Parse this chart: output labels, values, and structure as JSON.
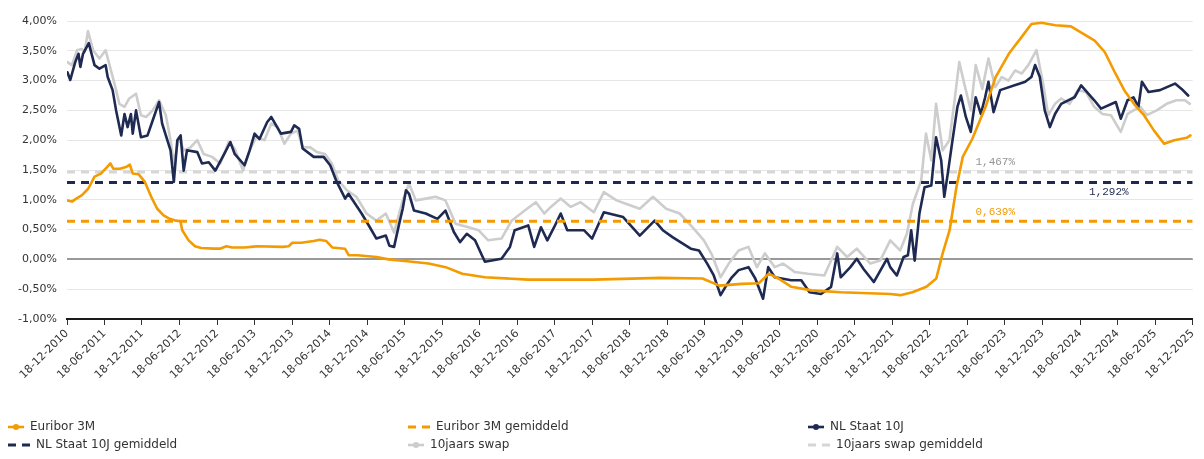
{
  "chart_data": {
    "type": "line",
    "xlim": [
      "2010-12-18",
      "2025-12-18"
    ],
    "xticks": [
      {
        "value": "2010-12-18",
        "label": "18-12-2010"
      },
      {
        "value": "2011-06-18",
        "label": "18-06-2011"
      },
      {
        "value": "2011-12-18",
        "label": "18-12-2011"
      },
      {
        "value": "2012-06-18",
        "label": "18-06-2012"
      },
      {
        "value": "2012-12-18",
        "label": "18-12-2012"
      },
      {
        "value": "2013-06-18",
        "label": "18-06-2013"
      },
      {
        "value": "2013-12-18",
        "label": "18-12-2013"
      },
      {
        "value": "2014-06-18",
        "label": "18-06-2014"
      },
      {
        "value": "2014-12-18",
        "label": "18-12-2014"
      },
      {
        "value": "2015-06-18",
        "label": "18-06-2015"
      },
      {
        "value": "2015-12-18",
        "label": "18-12-2015"
      },
      {
        "value": "2016-06-18",
        "label": "18-06-2016"
      },
      {
        "value": "2016-12-18",
        "label": "18-12-2016"
      },
      {
        "value": "2017-06-18",
        "label": "18-06-2017"
      },
      {
        "value": "2017-12-18",
        "label": "18-12-2017"
      },
      {
        "value": "2018-06-18",
        "label": "18-06-2018"
      },
      {
        "value": "2018-12-18",
        "label": "18-12-2018"
      },
      {
        "value": "2019-06-18",
        "label": "18-06-2019"
      },
      {
        "value": "2019-12-18",
        "label": "18-12-2019"
      },
      {
        "value": "2020-06-18",
        "label": "18-06-2020"
      },
      {
        "value": "2020-12-18",
        "label": "18-12-2020"
      },
      {
        "value": "2021-06-18",
        "label": "18-06-2021"
      },
      {
        "value": "2021-12-18",
        "label": "18-12-2021"
      },
      {
        "value": "2022-06-18",
        "label": "18-06-2022"
      },
      {
        "value": "2022-12-18",
        "label": "18-12-2022"
      },
      {
        "value": "2023-06-18",
        "label": "18-06-2023"
      },
      {
        "value": "2023-12-18",
        "label": "18-12-2023"
      },
      {
        "value": "2024-06-18",
        "label": "18-06-2024"
      },
      {
        "value": "2024-12-18",
        "label": "18-12-2024"
      },
      {
        "value": "2025-06-18",
        "label": "18-06-2025"
      },
      {
        "value": "2025-12-18",
        "label": "18-12-2025"
      }
    ],
    "ylim": [
      -1,
      4
    ],
    "yticks": [
      {
        "value": -1,
        "label": "-1,00%"
      },
      {
        "value": -0.5,
        "label": "-0,50%"
      },
      {
        "value": 0,
        "label": "0,00%"
      },
      {
        "value": 0.5,
        "label": "0,50%"
      },
      {
        "value": 1,
        "label": "1,00%"
      },
      {
        "value": 1.5,
        "label": "1,50%"
      },
      {
        "value": 2,
        "label": "2,00%"
      },
      {
        "value": 2.5,
        "label": "2,50%"
      },
      {
        "value": 3,
        "label": "3,00%"
      },
      {
        "value": 3.5,
        "label": "3,50%"
      },
      {
        "value": 4,
        "label": "4,00%"
      }
    ],
    "grid": "y",
    "legend": "bottom",
    "ref_lines": [
      {
        "axis": "y",
        "value": 0,
        "color": "#999999"
      }
    ],
    "series": [
      {
        "name": "Euribor 3M",
        "color": "#f39b00",
        "x": [
          "2010-12-20",
          "2011-01-11",
          "2011-02-01",
          "2011-03-01",
          "2011-04-01",
          "2011-05-01",
          "2011-06-01",
          "2011-07-01",
          "2011-07-17",
          "2011-08-01",
          "2011-09-01",
          "2011-10-01",
          "2011-10-20",
          "2011-11-03",
          "2011-12-01",
          "2012-01-01",
          "2012-02-01",
          "2012-03-01",
          "2012-04-01",
          "2012-05-01",
          "2012-06-01",
          "2012-06-22",
          "2012-07-01",
          "2012-08-01",
          "2012-09-01",
          "2012-10-01",
          "2012-12-01",
          "2013-01-01",
          "2013-02-01",
          "2013-03-01",
          "2013-05-01",
          "2013-07-01",
          "2013-11-01",
          "2013-12-01",
          "2013-12-19",
          "2014-02-01",
          "2014-04-01",
          "2014-05-01",
          "2014-06-01",
          "2014-07-01",
          "2014-09-01",
          "2014-09-19",
          "2014-11-01",
          "2015-02-01",
          "2015-04-01",
          "2015-07-01",
          "2015-10-13",
          "2016-01-04",
          "2016-03-25",
          "2016-07-13",
          "2017-02-07",
          "2017-12-25",
          "2018-11-13",
          "2019-06-07",
          "2019-08-28",
          "2019-12-16",
          "2020-03-07",
          "2020-04-25",
          "2020-06-10",
          "2020-08-13",
          "2020-11-19",
          "2021-04-10",
          "2021-12-07",
          "2022-01-25",
          "2022-03-25",
          "2022-06-01",
          "2022-07-19",
          "2022-08-19",
          "2022-09-22",
          "2022-10-25",
          "2022-11-25",
          "2023-01-10",
          "2023-03-16",
          "2023-05-04",
          "2023-07-07",
          "2023-09-07",
          "2023-10-25",
          "2023-12-13",
          "2024-02-19",
          "2024-05-04",
          "2024-06-22",
          "2024-08-28",
          "2024-10-16",
          "2024-12-04",
          "2025-01-19",
          "2025-03-07",
          "2025-04-25",
          "2025-06-13",
          "2025-08-01",
          "2025-09-19",
          "2025-11-19",
          "2025-12-07"
        ],
        "values": [
          0.99,
          0.97,
          1.02,
          1.08,
          1.19,
          1.39,
          1.44,
          1.55,
          1.61,
          1.52,
          1.52,
          1.55,
          1.59,
          1.44,
          1.43,
          1.3,
          1.05,
          0.85,
          0.74,
          0.68,
          0.65,
          0.64,
          0.49,
          0.32,
          0.22,
          0.19,
          0.18,
          0.18,
          0.22,
          0.2,
          0.2,
          0.22,
          0.21,
          0.22,
          0.28,
          0.28,
          0.31,
          0.33,
          0.31,
          0.2,
          0.18,
          0.07,
          0.07,
          0.04,
          0.0,
          -0.03,
          -0.07,
          -0.13,
          -0.24,
          -0.3,
          -0.34,
          -0.34,
          -0.31,
          -0.32,
          -0.44,
          -0.41,
          -0.4,
          -0.24,
          -0.32,
          -0.46,
          -0.52,
          -0.55,
          -0.58,
          -0.6,
          -0.55,
          -0.46,
          -0.32,
          0.1,
          0.49,
          1.21,
          1.72,
          2.02,
          2.56,
          3.06,
          3.45,
          3.73,
          3.95,
          3.97,
          3.93,
          3.91,
          3.81,
          3.67,
          3.48,
          3.14,
          2.84,
          2.61,
          2.42,
          2.16,
          1.94,
          2.0,
          2.04,
          2.08
        ]
      },
      {
        "name": "Euribor 3M gemiddeld",
        "color": "#f39b00",
        "line_style": "dashed",
        "x": [
          "2010-12-18",
          "2023-05-02",
          "2025-12-18"
        ],
        "values": [
          0.639,
          0.639,
          0.639
        ],
        "value_labels": [
          null,
          "0,639%",
          null
        ]
      },
      {
        "name": "NL Staat 10J",
        "color": "#1e2a52",
        "x": [
          "2010-12-20",
          "2011-01-03",
          "2011-01-27",
          "2011-02-12",
          "2011-02-21",
          "2011-03-06",
          "2011-04-03",
          "2011-05-01",
          "2011-05-25",
          "2011-06-24",
          "2011-07-04",
          "2011-07-28",
          "2011-08-14",
          "2011-09-08",
          "2011-09-24",
          "2011-10-09",
          "2011-10-25",
          "2011-11-03",
          "2011-11-19",
          "2011-12-13",
          "2012-01-14",
          "2012-02-08",
          "2012-03-10",
          "2012-03-25",
          "2012-05-05",
          "2012-05-21",
          "2012-06-07",
          "2012-06-23",
          "2012-07-08",
          "2012-07-24",
          "2012-09-12",
          "2012-10-05",
          "2012-11-07",
          "2012-12-09",
          "2013-01-26",
          "2013-02-20",
          "2013-03-13",
          "2013-04-30",
          "2013-05-25",
          "2013-06-18",
          "2013-07-12",
          "2013-08-18",
          "2013-09-07",
          "2013-10-24",
          "2013-12-12",
          "2013-12-28",
          "2014-01-21",
          "2014-02-07",
          "2014-04-02",
          "2014-05-20",
          "2014-06-21",
          "2014-07-23",
          "2014-09-02",
          "2014-09-18",
          "2014-11-21",
          "2014-12-31",
          "2015-02-01",
          "2015-03-19",
          "2015-04-05",
          "2015-04-28",
          "2015-05-23",
          "2015-06-09",
          "2015-06-25",
          "2015-07-10",
          "2015-08-03",
          "2015-09-29",
          "2015-11-25",
          "2016-01-03",
          "2016-02-13",
          "2016-03-14",
          "2016-04-16",
          "2016-05-26",
          "2016-07-13",
          "2016-10-02",
          "2016-11-12",
          "2016-12-05",
          "2017-02-09",
          "2017-03-10",
          "2017-04-12",
          "2017-05-13",
          "2017-06-15",
          "2017-07-17",
          "2017-08-18",
          "2017-11-07",
          "2017-12-17",
          "2018-02-12",
          "2018-05-17",
          "2018-08-06",
          "2018-10-17",
          "2018-11-26",
          "2019-01-14",
          "2019-04-11",
          "2019-05-21",
          "2019-06-30",
          "2019-08-01",
          "2019-09-03",
          "2019-09-27",
          "2019-10-28",
          "2019-11-30",
          "2020-01-17",
          "2020-02-19",
          "2020-03-28",
          "2020-04-22",
          "2020-05-24",
          "2020-08-12",
          "2020-09-30",
          "2020-11-09",
          "2021-01-04",
          "2021-02-22",
          "2021-03-24",
          "2021-04-10",
          "2021-05-27",
          "2021-06-27",
          "2021-07-30",
          "2021-09-18",
          "2021-11-21",
          "2021-12-07",
          "2022-01-08",
          "2022-02-10",
          "2022-03-03",
          "2022-03-19",
          "2022-04-05",
          "2022-04-28",
          "2022-05-23",
          "2022-06-25",
          "2022-07-18",
          "2022-08-12",
          "2022-08-27",
          "2022-09-13",
          "2022-10-06",
          "2022-10-30",
          "2022-11-16",
          "2022-12-10",
          "2023-01-03",
          "2023-01-27",
          "2023-02-21",
          "2023-03-14",
          "2023-03-30",
          "2023-04-24",
          "2023-05-26",
          "2023-09-25",
          "2023-10-25",
          "2023-11-12",
          "2023-12-05",
          "2023-12-29",
          "2024-01-23",
          "2024-02-17",
          "2024-03-18",
          "2024-05-22",
          "2024-06-23",
          "2024-08-26",
          "2024-09-28",
          "2024-12-09",
          "2025-01-02",
          "2025-02-04",
          "2025-03-05",
          "2025-03-29",
          "2025-04-15",
          "2025-05-17",
          "2025-07-12",
          "2025-09-23",
          "2025-10-25",
          "2025-11-26"
        ],
        "values": [
          3.14,
          3.01,
          3.31,
          3.45,
          3.23,
          3.45,
          3.63,
          3.26,
          3.2,
          3.26,
          3.06,
          2.84,
          2.5,
          2.08,
          2.44,
          2.22,
          2.44,
          2.11,
          2.5,
          2.05,
          2.08,
          2.33,
          2.64,
          2.28,
          1.83,
          1.3,
          2.0,
          2.08,
          1.49,
          1.83,
          1.8,
          1.61,
          1.63,
          1.49,
          1.8,
          1.97,
          1.77,
          1.58,
          1.83,
          2.11,
          2.02,
          2.3,
          2.39,
          2.11,
          2.14,
          2.25,
          2.19,
          1.86,
          1.72,
          1.72,
          1.58,
          1.3,
          1.02,
          1.1,
          0.77,
          0.54,
          0.35,
          0.4,
          0.23,
          0.21,
          0.6,
          0.85,
          1.16,
          1.1,
          0.82,
          0.77,
          0.68,
          0.82,
          0.46,
          0.29,
          0.43,
          0.32,
          -0.04,
          0.01,
          0.21,
          0.49,
          0.57,
          0.21,
          0.54,
          0.32,
          0.54,
          0.77,
          0.49,
          0.49,
          0.35,
          0.79,
          0.71,
          0.4,
          0.65,
          0.49,
          0.37,
          0.18,
          0.15,
          -0.07,
          -0.27,
          -0.6,
          -0.46,
          -0.3,
          -0.18,
          -0.13,
          -0.32,
          -0.66,
          -0.13,
          -0.3,
          -0.35,
          -0.35,
          -0.55,
          -0.58,
          -0.46,
          0.1,
          -0.3,
          -0.13,
          0.01,
          -0.16,
          -0.38,
          0.01,
          -0.13,
          -0.27,
          0.04,
          0.07,
          0.49,
          -0.02,
          0.77,
          1.21,
          1.24,
          2.05,
          1.66,
          1.05,
          1.44,
          2.0,
          2.56,
          2.75,
          2.39,
          2.14,
          2.72,
          2.44,
          2.72,
          2.98,
          2.47,
          2.84,
          2.98,
          3.06,
          3.26,
          3.06,
          2.5,
          2.22,
          2.44,
          2.61,
          2.72,
          2.92,
          2.67,
          2.53,
          2.64,
          2.36,
          2.67,
          2.72,
          2.56,
          2.98,
          2.81,
          2.84,
          2.95,
          2.86,
          2.75
        ]
      },
      {
        "name": "NL Staat 10J gemiddeld",
        "color": "#1e2a52",
        "line_style": "dashed",
        "x": [
          "2010-12-18",
          "2024-11-05",
          "2025-12-18"
        ],
        "values": [
          1.292,
          1.292,
          1.292
        ],
        "value_labels": [
          null,
          "1,292%",
          null
        ]
      },
      {
        "name": "10jaars swap",
        "color": "#cdcdcd",
        "x": [
          "2010-12-20",
          "2011-01-11",
          "2011-02-05",
          "2011-02-28",
          "2011-03-14",
          "2011-03-30",
          "2011-04-24",
          "2011-05-25",
          "2011-06-24",
          "2011-07-13",
          "2011-08-06",
          "2011-08-30",
          "2011-09-24",
          "2011-10-17",
          "2011-11-19",
          "2011-12-13",
          "2012-01-07",
          "2012-02-08",
          "2012-03-10",
          "2012-04-12",
          "2012-05-05",
          "2012-05-21",
          "2012-06-15",
          "2012-07-08",
          "2012-08-10",
          "2012-09-12",
          "2012-10-13",
          "2012-11-23",
          "2013-01-02",
          "2013-02-12",
          "2013-03-13",
          "2013-04-23",
          "2013-05-25",
          "2013-06-26",
          "2013-08-05",
          "2013-09-07",
          "2013-10-08",
          "2013-11-10",
          "2013-12-12",
          "2014-01-13",
          "2014-02-07",
          "2014-03-16",
          "2014-04-18",
          "2014-05-27",
          "2014-06-29",
          "2014-07-30",
          "2014-09-10",
          "2014-10-27",
          "2014-12-15",
          "2015-02-01",
          "2015-03-19",
          "2015-04-28",
          "2015-06-09",
          "2015-07-10",
          "2015-08-12",
          "2015-09-29",
          "2015-11-16",
          "2016-01-03",
          "2016-02-21",
          "2016-04-24",
          "2016-06-12",
          "2016-07-29",
          "2016-10-02",
          "2016-11-20",
          "2017-01-23",
          "2017-03-18",
          "2017-04-28",
          "2017-05-30",
          "2017-07-17",
          "2017-09-04",
          "2017-10-22",
          "2017-12-25",
          "2018-02-12",
          "2018-04-15",
          "2018-06-02",
          "2018-08-06",
          "2018-10-09",
          "2018-12-12",
          "2019-02-16",
          "2019-04-19",
          "2019-06-14",
          "2019-07-24",
          "2019-09-03",
          "2019-10-13",
          "2019-11-30",
          "2020-01-17",
          "2020-02-27",
          "2020-04-06",
          "2020-05-24",
          "2020-07-03",
          "2020-08-28",
          "2020-11-01",
          "2021-01-20",
          "2021-03-24",
          "2021-05-11",
          "2021-06-27",
          "2021-09-01",
          "2021-10-19",
          "2021-12-07",
          "2022-01-24",
          "2022-02-26",
          "2022-03-27",
          "2022-05-07",
          "2022-05-30",
          "2022-06-25",
          "2022-07-18",
          "2022-08-19",
          "2022-09-21",
          "2022-10-14",
          "2022-11-08",
          "2022-12-02",
          "2023-01-03",
          "2023-01-27",
          "2023-02-28",
          "2023-03-30",
          "2023-05-02",
          "2023-06-03",
          "2023-07-05",
          "2023-08-07",
          "2023-09-08",
          "2023-10-10",
          "2023-11-19",
          "2023-12-21",
          "2024-01-15",
          "2024-02-17",
          "2024-03-18",
          "2024-04-28",
          "2024-06-07",
          "2024-07-16",
          "2024-08-26",
          "2024-10-05",
          "2024-11-15",
          "2025-01-02",
          "2025-02-04",
          "2025-03-05",
          "2025-04-07",
          "2025-05-09",
          "2025-06-26",
          "2025-08-13",
          "2025-09-30",
          "2025-11-10",
          "2025-12-04"
        ],
        "values": [
          3.31,
          3.26,
          3.51,
          3.53,
          3.48,
          3.83,
          3.51,
          3.37,
          3.51,
          3.26,
          2.95,
          2.61,
          2.56,
          2.7,
          2.78,
          2.42,
          2.39,
          2.5,
          2.67,
          2.42,
          2.0,
          1.61,
          2.05,
          1.83,
          1.88,
          2.0,
          1.77,
          1.72,
          1.61,
          1.97,
          1.86,
          1.49,
          1.83,
          2.05,
          2.0,
          2.28,
          2.22,
          1.94,
          2.11,
          2.16,
          1.88,
          1.88,
          1.8,
          1.77,
          1.61,
          1.33,
          1.16,
          1.05,
          0.77,
          0.65,
          0.77,
          0.45,
          0.99,
          1.27,
          0.99,
          1.02,
          1.05,
          0.99,
          0.6,
          0.54,
          0.49,
          0.32,
          0.35,
          0.65,
          0.82,
          0.96,
          0.77,
          0.88,
          1.02,
          0.88,
          0.96,
          0.79,
          1.13,
          0.99,
          0.93,
          0.85,
          1.05,
          0.85,
          0.77,
          0.54,
          0.32,
          0.07,
          -0.3,
          -0.07,
          0.15,
          0.21,
          -0.13,
          0.1,
          -0.13,
          -0.07,
          -0.21,
          -0.24,
          -0.27,
          0.21,
          0.04,
          0.18,
          -0.07,
          -0.02,
          0.32,
          0.15,
          0.43,
          0.93,
          1.33,
          2.11,
          1.66,
          2.61,
          1.83,
          2.0,
          2.61,
          3.31,
          2.95,
          2.5,
          3.26,
          2.86,
          3.37,
          2.89,
          3.06,
          3.0,
          3.17,
          3.12,
          3.26,
          3.51,
          2.95,
          2.42,
          2.61,
          2.7,
          2.61,
          2.84,
          2.81,
          2.56,
          2.44,
          2.42,
          2.14,
          2.44,
          2.5,
          2.56,
          2.42,
          2.5,
          2.61,
          2.67,
          2.67,
          2.61
        ]
      },
      {
        "name": "10jaars swap gemiddeld",
        "color": "#d6d6d6",
        "line_style": "dashed",
        "x": [
          "2010-12-18",
          "2023-05-02",
          "2025-12-18"
        ],
        "values": [
          1.467,
          1.467,
          1.467
        ],
        "value_labels": [
          null,
          "1,467%",
          null
        ]
      }
    ]
  }
}
